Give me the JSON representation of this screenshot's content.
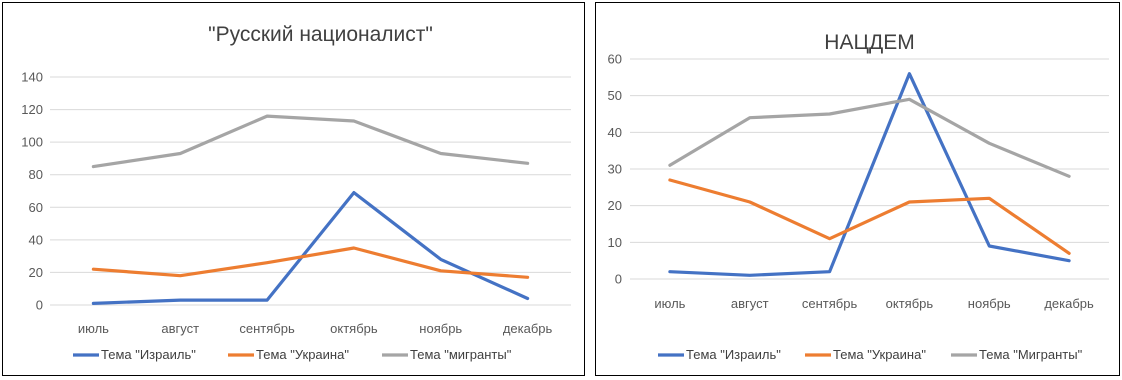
{
  "charts": [
    {
      "type": "line",
      "title": "\"Русский националист\"",
      "categories": [
        "июль",
        "август",
        "сентябрь",
        "октябрь",
        "ноябрь",
        "декабрь"
      ],
      "ylim": [
        0,
        140
      ],
      "yticks": [
        "0",
        "20",
        "40",
        "60",
        "80",
        "100",
        "120",
        "140"
      ],
      "grid": true,
      "legend_position": "bottom",
      "series": [
        {
          "name": "Тема \"Израиль\"",
          "color": "#4472c4",
          "values": [
            1,
            3,
            3,
            69,
            28,
            4
          ]
        },
        {
          "name": "Тема \"Украина\"",
          "color": "#ed7d31",
          "values": [
            22,
            18,
            26,
            35,
            21,
            17
          ]
        },
        {
          "name": "Тема \"мигранты\"",
          "color": "#a5a5a5",
          "values": [
            85,
            93,
            116,
            113,
            93,
            87
          ]
        }
      ]
    },
    {
      "type": "line",
      "title": "НАЦДЕМ",
      "categories": [
        "июль",
        "август",
        "сентябрь",
        "октябрь",
        "ноябрь",
        "декабрь"
      ],
      "ylim": [
        0,
        60
      ],
      "yticks": [
        "0",
        "10",
        "20",
        "30",
        "40",
        "50",
        "60"
      ],
      "grid": true,
      "legend_position": "bottom",
      "series": [
        {
          "name": "Тема \"Израиль\"",
          "color": "#4472c4",
          "values": [
            2,
            1,
            2,
            56,
            9,
            5
          ]
        },
        {
          "name": "Тема \"Украина\"",
          "color": "#ed7d31",
          "values": [
            27,
            21,
            11,
            21,
            22,
            7
          ]
        },
        {
          "name": "Тема \"Мигранты\"",
          "color": "#a5a5a5",
          "values": [
            31,
            44,
            45,
            49,
            37,
            28
          ]
        }
      ]
    }
  ],
  "chart_data": [
    {
      "type": "line",
      "title": "\"Русский националист\"",
      "categories": [
        "июль",
        "август",
        "сентябрь",
        "октябрь",
        "ноябрь",
        "декабрь"
      ],
      "ylim": [
        0,
        140
      ],
      "series": [
        {
          "name": "Тема \"Израиль\"",
          "values": [
            1,
            3,
            3,
            69,
            28,
            4
          ]
        },
        {
          "name": "Тема \"Украина\"",
          "values": [
            22,
            18,
            26,
            35,
            21,
            17
          ]
        },
        {
          "name": "Тема \"мигранты\"",
          "values": [
            85,
            93,
            116,
            113,
            93,
            87
          ]
        }
      ]
    },
    {
      "type": "line",
      "title": "НАЦДЕМ",
      "categories": [
        "июль",
        "август",
        "сентябрь",
        "октябрь",
        "ноябрь",
        "декабрь"
      ],
      "ylim": [
        0,
        60
      ],
      "series": [
        {
          "name": "Тема \"Израиль\"",
          "values": [
            2,
            1,
            2,
            56,
            9,
            5
          ]
        },
        {
          "name": "Тема \"Украина\"",
          "values": [
            27,
            21,
            11,
            21,
            22,
            7
          ]
        },
        {
          "name": "Тема \"Мигранты\"",
          "values": [
            31,
            44,
            45,
            49,
            37,
            28
          ]
        }
      ]
    }
  ]
}
